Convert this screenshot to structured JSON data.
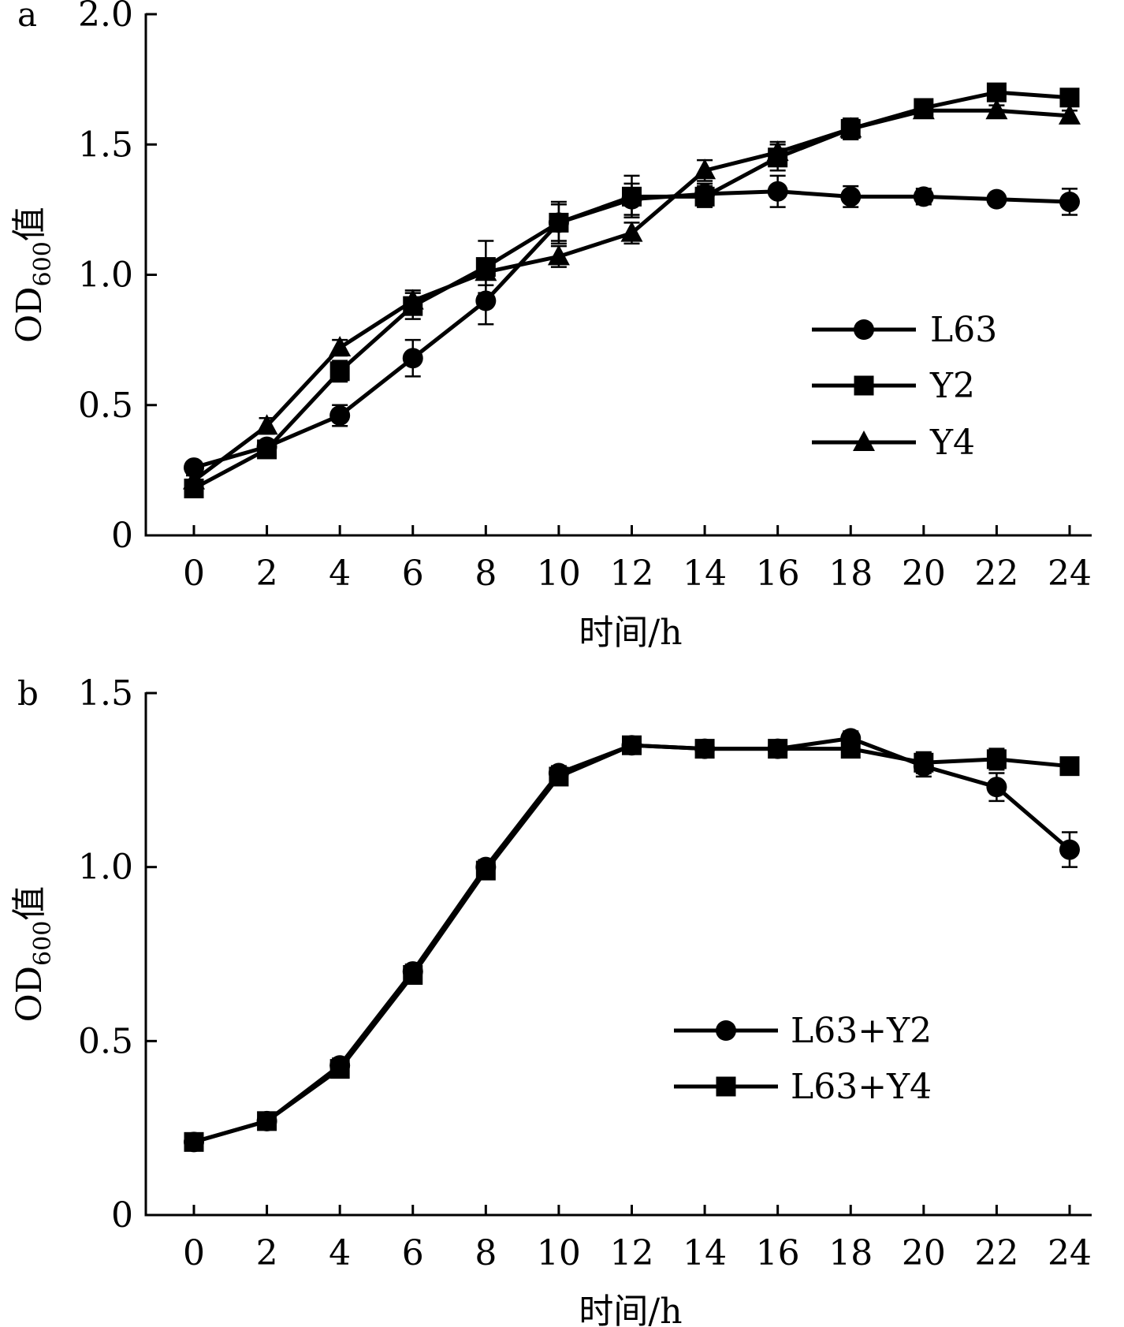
{
  "chart_data": [
    {
      "panel": "a",
      "type": "line",
      "xlabel": "时间/h",
      "ylabel": {
        "prefix": "OD",
        "subscript": "600",
        "suffix": "值"
      },
      "x": [
        0,
        2,
        4,
        6,
        8,
        10,
        12,
        14,
        16,
        18,
        20,
        22,
        24
      ],
      "xlim": [
        0,
        24
      ],
      "ylim": [
        0,
        2.0
      ],
      "yticks": [
        "0",
        "0.5",
        "1.0",
        "1.5",
        "2.0"
      ],
      "xticks": [
        "0",
        "2",
        "4",
        "6",
        "8",
        "10",
        "12",
        "14",
        "16",
        "18",
        "20",
        "22",
        "24"
      ],
      "grid": false,
      "legend_position": "center-right",
      "series": [
        {
          "name": "L63",
          "marker": "circle",
          "values": [
            0.26,
            0.34,
            0.46,
            0.68,
            0.9,
            1.2,
            1.29,
            1.31,
            1.32,
            1.3,
            1.3,
            1.29,
            1.28
          ],
          "errors": [
            0.02,
            0.02,
            0.04,
            0.07,
            0.09,
            0.07,
            0.06,
            0.04,
            0.06,
            0.04,
            0.03,
            0.02,
            0.05
          ]
        },
        {
          "name": "Y2",
          "marker": "square",
          "values": [
            0.18,
            0.33,
            0.63,
            0.88,
            1.03,
            1.2,
            1.3,
            1.3,
            1.45,
            1.56,
            1.64,
            1.7,
            1.68
          ],
          "errors": [
            0.02,
            0.02,
            0.04,
            0.05,
            0.1,
            0.08,
            0.08,
            0.04,
            0.05,
            0.04,
            0.02,
            0.02,
            0.02
          ]
        },
        {
          "name": "Y4",
          "marker": "triangle",
          "values": [
            0.21,
            0.42,
            0.72,
            0.9,
            1.01,
            1.07,
            1.16,
            1.4,
            1.47,
            1.56,
            1.63,
            1.63,
            1.61
          ],
          "errors": [
            0.02,
            0.03,
            0.03,
            0.04,
            0.05,
            0.04,
            0.04,
            0.04,
            0.04,
            0.04,
            0.02,
            0.02,
            0.02
          ]
        }
      ]
    },
    {
      "panel": "b",
      "type": "line",
      "xlabel": "时间/h",
      "ylabel": {
        "prefix": "OD",
        "subscript": "600",
        "suffix": "值"
      },
      "x": [
        0,
        2,
        4,
        6,
        8,
        10,
        12,
        14,
        16,
        18,
        20,
        22,
        24
      ],
      "xlim": [
        0,
        24
      ],
      "ylim": [
        0,
        1.5
      ],
      "yticks": [
        "0",
        "0.5",
        "1.0",
        "1.5"
      ],
      "xticks": [
        "0",
        "2",
        "4",
        "6",
        "8",
        "10",
        "12",
        "14",
        "16",
        "18",
        "20",
        "22",
        "24"
      ],
      "grid": false,
      "legend_position": "lower-right",
      "series": [
        {
          "name": "L63+Y2",
          "marker": "circle",
          "values": [
            0.21,
            0.27,
            0.43,
            0.7,
            1.0,
            1.27,
            1.35,
            1.34,
            1.34,
            1.37,
            1.29,
            1.23,
            1.05
          ],
          "errors": [
            0.01,
            0.01,
            0.02,
            0.02,
            0.02,
            0.02,
            0.01,
            0.01,
            0.01,
            0.02,
            0.03,
            0.04,
            0.05
          ]
        },
        {
          "name": "L63+Y4",
          "marker": "square",
          "values": [
            0.21,
            0.27,
            0.42,
            0.69,
            0.99,
            1.26,
            1.35,
            1.34,
            1.34,
            1.34,
            1.3,
            1.31,
            1.29
          ],
          "errors": [
            0.01,
            0.01,
            0.02,
            0.02,
            0.02,
            0.02,
            0.01,
            0.01,
            0.01,
            0.01,
            0.03,
            0.03,
            0.02
          ]
        }
      ]
    }
  ]
}
